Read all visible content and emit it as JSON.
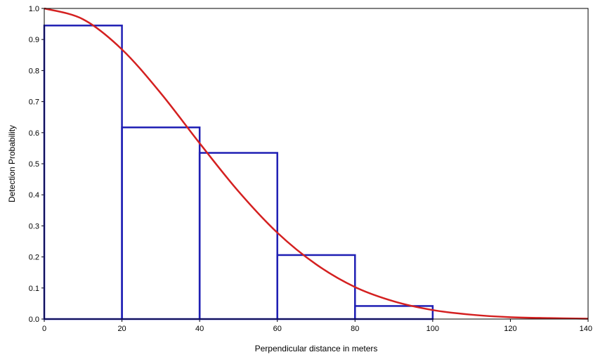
{
  "chart_data": {
    "type": "bar",
    "title": "",
    "xlabel": "Perpendicular distance in meters",
    "ylabel": "Detection Probability",
    "xlim": [
      0,
      140
    ],
    "ylim": [
      0,
      1.0
    ],
    "x_ticks": [
      "0",
      "20",
      "40",
      "60",
      "80",
      "100",
      "120",
      "140"
    ],
    "y_ticks": [
      "0.0",
      "0.1",
      "0.2",
      "0.3",
      "0.4",
      "0.5",
      "0.6",
      "0.7",
      "0.8",
      "0.9",
      "1.0"
    ],
    "grid": false,
    "histogram": {
      "color": "#1f1fb4",
      "bins": [
        {
          "from": 0,
          "to": 20,
          "value": 0.945
        },
        {
          "from": 20,
          "to": 40,
          "value": 0.617
        },
        {
          "from": 40,
          "to": 60,
          "value": 0.535
        },
        {
          "from": 60,
          "to": 80,
          "value": 0.206
        },
        {
          "from": 80,
          "to": 100,
          "value": 0.042
        }
      ]
    },
    "curve": {
      "type": "line",
      "color": "#d42020",
      "x": [
        0,
        10,
        20,
        30,
        40,
        50,
        60,
        70,
        80,
        90,
        100,
        110,
        120,
        130,
        140
      ],
      "y": [
        1.0,
        0.965,
        0.868,
        0.727,
        0.566,
        0.411,
        0.278,
        0.176,
        0.103,
        0.057,
        0.029,
        0.014,
        0.006,
        0.003,
        0.001
      ]
    }
  }
}
